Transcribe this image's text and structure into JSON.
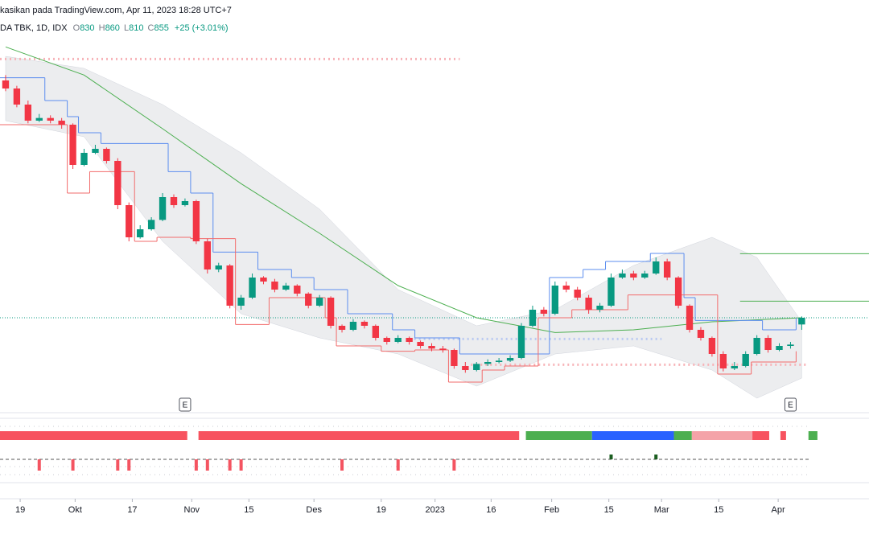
{
  "header": {
    "source": "kasikan pada TradingView.com, Apr 11, 2023 18:28 UTC+7",
    "symbol": "DA TBK, 1D, IDX",
    "ohlc": [
      {
        "label": "O",
        "value": "830"
      },
      {
        "label": "H",
        "value": "860"
      },
      {
        "label": "L",
        "value": "810"
      },
      {
        "label": "C",
        "value": "855"
      }
    ],
    "change": "+25 (+3.01%)"
  },
  "chart_data": {
    "type": "candlestick",
    "up_color": "#089981",
    "down_color": "#f23645",
    "xlim": [
      -0.5,
      77
    ],
    "ylim": [
      510,
      1890
    ],
    "xticks": [
      {
        "value": 1.3,
        "label": "19"
      },
      {
        "value": 6.2,
        "label": "Okt"
      },
      {
        "value": 11.3,
        "label": "17"
      },
      {
        "value": 16.6,
        "label": "Nov"
      },
      {
        "value": 21.7,
        "label": "15"
      },
      {
        "value": 27.5,
        "label": "Des"
      },
      {
        "value": 33.5,
        "label": "19"
      },
      {
        "value": 38.3,
        "label": "2023"
      },
      {
        "value": 43.3,
        "label": "16"
      },
      {
        "value": 48.7,
        "label": "Feb"
      },
      {
        "value": 53.8,
        "label": "15"
      },
      {
        "value": 58.5,
        "label": "Mar"
      },
      {
        "value": 63.6,
        "label": "15"
      },
      {
        "value": 68.9,
        "label": "Apr"
      }
    ],
    "ohlc": [
      [
        1740,
        1760,
        1700,
        1710
      ],
      [
        1710,
        1720,
        1640,
        1650
      ],
      [
        1650,
        1665,
        1580,
        1590
      ],
      [
        1590,
        1615,
        1585,
        1600
      ],
      [
        1600,
        1610,
        1580,
        1590
      ],
      [
        1590,
        1600,
        1560,
        1575
      ],
      [
        1575,
        1580,
        1410,
        1425
      ],
      [
        1425,
        1485,
        1420,
        1470
      ],
      [
        1470,
        1500,
        1465,
        1485
      ],
      [
        1485,
        1490,
        1430,
        1440
      ],
      [
        1440,
        1450,
        1260,
        1275
      ],
      [
        1275,
        1285,
        1140,
        1155
      ],
      [
        1155,
        1200,
        1150,
        1185
      ],
      [
        1185,
        1230,
        1180,
        1220
      ],
      [
        1220,
        1320,
        1215,
        1305
      ],
      [
        1305,
        1315,
        1265,
        1275
      ],
      [
        1275,
        1300,
        1270,
        1290
      ],
      [
        1290,
        1295,
        1130,
        1140
      ],
      [
        1140,
        1150,
        1020,
        1035
      ],
      [
        1035,
        1060,
        1025,
        1050
      ],
      [
        1050,
        1055,
        890,
        900
      ],
      [
        900,
        940,
        885,
        930
      ],
      [
        930,
        1020,
        925,
        1005
      ],
      [
        1005,
        1010,
        980,
        990
      ],
      [
        990,
        1000,
        950,
        960
      ],
      [
        960,
        985,
        955,
        975
      ],
      [
        975,
        980,
        935,
        945
      ],
      [
        945,
        950,
        890,
        900
      ],
      [
        900,
        940,
        895,
        930
      ],
      [
        930,
        935,
        815,
        825
      ],
      [
        825,
        830,
        800,
        810
      ],
      [
        810,
        850,
        805,
        840
      ],
      [
        840,
        845,
        815,
        825
      ],
      [
        825,
        830,
        770,
        780
      ],
      [
        780,
        785,
        755,
        765
      ],
      [
        765,
        790,
        760,
        780
      ],
      [
        780,
        785,
        755,
        765
      ],
      [
        765,
        770,
        740,
        750
      ],
      [
        750,
        760,
        730,
        740
      ],
      [
        740,
        750,
        725,
        735
      ],
      [
        735,
        740,
        665,
        675
      ],
      [
        675,
        690,
        650,
        660
      ],
      [
        660,
        690,
        655,
        683
      ],
      [
        683,
        700,
        675,
        690
      ],
      [
        690,
        705,
        685,
        695
      ],
      [
        695,
        715,
        690,
        705
      ],
      [
        705,
        835,
        700,
        825
      ],
      [
        825,
        900,
        820,
        885
      ],
      [
        885,
        895,
        860,
        870
      ],
      [
        870,
        990,
        865,
        975
      ],
      [
        975,
        990,
        950,
        960
      ],
      [
        960,
        970,
        920,
        930
      ],
      [
        930,
        940,
        870,
        885
      ],
      [
        885,
        910,
        875,
        900
      ],
      [
        900,
        1020,
        895,
        1005
      ],
      [
        1005,
        1035,
        1000,
        1020
      ],
      [
        1020,
        1030,
        995,
        1005
      ],
      [
        1005,
        1030,
        1000,
        1020
      ],
      [
        1020,
        1080,
        1015,
        1065
      ],
      [
        1065,
        1075,
        995,
        1005
      ],
      [
        1005,
        1010,
        890,
        900
      ],
      [
        900,
        905,
        800,
        810
      ],
      [
        810,
        820,
        770,
        780
      ],
      [
        780,
        785,
        710,
        720
      ],
      [
        720,
        730,
        655,
        666
      ],
      [
        666,
        690,
        660,
        675
      ],
      [
        675,
        730,
        670,
        720
      ],
      [
        720,
        790,
        715,
        780
      ],
      [
        780,
        790,
        725,
        735
      ],
      [
        735,
        760,
        730,
        750
      ],
      [
        750,
        765,
        740,
        755
      ],
      [
        830,
        860,
        810,
        855
      ]
    ],
    "ma": {
      "color": "#4caf50",
      "x": [
        0,
        7,
        14,
        21,
        28,
        35,
        42,
        49,
        56,
        63,
        71
      ],
      "values": [
        1865,
        1760,
        1560,
        1355,
        1170,
        975,
        855,
        800,
        810,
        840,
        855
      ]
    },
    "band": {
      "color": "#e6e7ea",
      "x": [
        0,
        7,
        14,
        21,
        28,
        35,
        42,
        49,
        56,
        63,
        67,
        71
      ],
      "upper": [
        1830,
        1785,
        1650,
        1470,
        1260,
        960,
        825,
        885,
        1050,
        1155,
        1080,
        840
      ],
      "lower": [
        1590,
        1530,
        1140,
        870,
        780,
        720,
        600,
        720,
        750,
        660,
        555,
        630
      ]
    },
    "resistance": {
      "color": "#5b8def",
      "x": [
        0,
        4,
        6,
        7,
        9,
        15,
        17,
        19,
        23,
        26,
        28,
        31,
        35,
        37,
        41,
        49,
        52,
        54,
        58,
        61,
        62,
        68,
        71
      ],
      "values": [
        1750,
        1665,
        1605,
        1545,
        1505,
        1400,
        1320,
        1100,
        1035,
        1005,
        960,
        870,
        810,
        780,
        720,
        1005,
        1035,
        1065,
        1095,
        930,
        845,
        810,
        855
      ]
    },
    "support": {
      "color": "#f26b6b",
      "x": [
        0,
        6,
        8,
        12,
        14,
        17,
        21,
        24,
        29,
        30,
        34,
        37,
        40,
        43,
        45,
        48,
        51,
        56,
        62,
        64,
        67,
        71
      ],
      "values": [
        1575,
        1320,
        1400,
        1140,
        1155,
        1150,
        830,
        930,
        855,
        750,
        730,
        735,
        615,
        660,
        675,
        855,
        885,
        940,
        940,
        645,
        690,
        730
      ]
    },
    "levels": [
      {
        "value": 1094,
        "from": 65.5,
        "to": 77,
        "color": "#4caf50",
        "style": "solid"
      },
      {
        "value": 917,
        "from": 65.5,
        "to": 77,
        "color": "#4caf50",
        "style": "solid"
      },
      {
        "value": 1820,
        "from": -0.5,
        "to": 40.5,
        "color": "#f7b3b8",
        "style": "dotted"
      },
      {
        "value": 680,
        "from": 41.5,
        "to": 71.5,
        "color": "#f7b3b8",
        "style": "dotted"
      },
      {
        "value": 776,
        "from": 36,
        "to": 58.5,
        "color": "#b9c9f2",
        "style": "dotted"
      },
      {
        "value": 855,
        "from": -0.5,
        "to": 77,
        "color": "#089981",
        "style": "thin-dotted"
      }
    ],
    "earnings": [
      {
        "index": 16,
        "label": "E"
      },
      {
        "index": 70,
        "label": "E"
      }
    ],
    "state_bar": [
      {
        "from": -0.5,
        "to": 16.2,
        "color": "#f7525f"
      },
      {
        "from": 17.2,
        "to": 45.8,
        "color": "#f7525f"
      },
      {
        "from": 46.4,
        "to": 52.3,
        "color": "#4caf50"
      },
      {
        "from": 52.3,
        "to": 59.6,
        "color": "#2962ff"
      },
      {
        "from": 59.6,
        "to": 61.2,
        "color": "#4caf50"
      },
      {
        "from": 61.2,
        "to": 66.6,
        "color": "#f4a3a8"
      },
      {
        "from": 66.6,
        "to": 68.1,
        "color": "#f7525f"
      },
      {
        "from": 69.1,
        "to": 69.6,
        "color": "#f7525f"
      },
      {
        "from": 71.6,
        "to": 72.4,
        "color": "#4caf50"
      }
    ],
    "signals": {
      "down_color": "#f23645",
      "up_color": "#1b5e20",
      "down": [
        3,
        6,
        10,
        11,
        17,
        18,
        20,
        21,
        30,
        35,
        40
      ],
      "up": [
        54,
        58
      ]
    }
  }
}
